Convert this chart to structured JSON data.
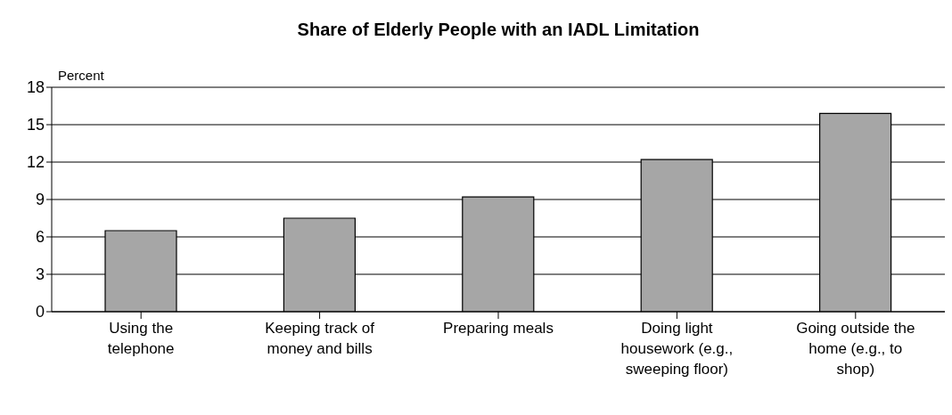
{
  "chart_data": {
    "type": "bar",
    "title": "Share of Elderly People with an IADL Limitation",
    "ylabel": "Percent",
    "categories": [
      "Using the telephone",
      "Keeping track of money and bills",
      "Preparing meals",
      "Doing light housework (e.g., sweeping floor)",
      "Going outside the home (e.g., to shop)"
    ],
    "values": [
      6.5,
      7.5,
      9.2,
      12.2,
      15.9
    ],
    "color": "#a6a6a6",
    "ylim": [
      0,
      18
    ],
    "yticks": [
      0,
      3,
      6,
      9,
      12,
      15,
      18
    ],
    "grid": "y",
    "legend": false
  }
}
